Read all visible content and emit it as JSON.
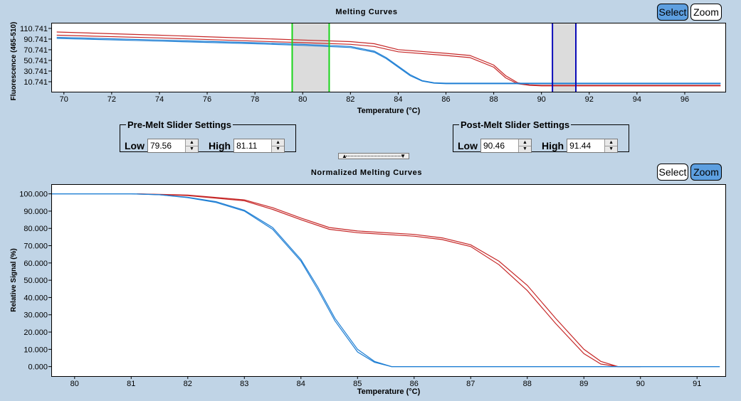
{
  "top_chart": {
    "title": "Melting Curves",
    "select_label": "Select",
    "zoom_label": "Zoom",
    "active_mode": "select"
  },
  "bottom_chart": {
    "title": "Normalized Melting Curves",
    "select_label": "Select",
    "zoom_label": "Zoom",
    "active_mode": "zoom"
  },
  "pre_melt": {
    "legend": "Pre-Melt Slider Settings",
    "low_label": "Low",
    "low_value": "79.56",
    "high_label": "High",
    "high_value": "81.11"
  },
  "post_melt": {
    "legend": "Post-Melt Slider Settings",
    "low_label": "Low",
    "low_value": "90.46",
    "high_label": "High",
    "high_value": "91.44"
  },
  "colors": {
    "background": "#c0d4e6",
    "red_series": "#c62828",
    "blue_series": "#1f7fd4",
    "pre_cursor": "#19d419",
    "post_cursor": "#0a0ab8",
    "slider_band": "#dcdcdc",
    "button_active": "#5d9fe0"
  },
  "chart_data": [
    {
      "type": "line",
      "title": "Melting Curves",
      "xlabel": "Temperature (°C)",
      "ylabel": "Fluorescence (465-510)",
      "xlim": [
        69.5,
        97.7
      ],
      "ylim": [
        -8,
        120
      ],
      "x_ticks": [
        "70",
        "72",
        "74",
        "76",
        "78",
        "80",
        "82",
        "84",
        "86",
        "88",
        "90",
        "92",
        "94",
        "96"
      ],
      "y_ticks": [
        "10.741",
        "30.741",
        "50.741",
        "70.741",
        "90.741",
        "110.741"
      ],
      "pre_melt_range": [
        79.56,
        81.11
      ],
      "post_melt_range": [
        90.46,
        91.44
      ],
      "series": [
        {
          "name": "red-1",
          "color": "#c62828",
          "x": [
            69.7,
            74,
            78,
            80,
            82,
            83,
            84,
            86,
            87,
            88,
            88.5,
            89,
            89.5,
            90,
            97.5
          ],
          "y": [
            104,
            98,
            92,
            89,
            86,
            82,
            71,
            64,
            60,
            42,
            22,
            9,
            5,
            4,
            4
          ]
        },
        {
          "name": "red-2",
          "color": "#c62828",
          "x": [
            69.7,
            74,
            78,
            80,
            82,
            83,
            84,
            86,
            87,
            88,
            88.5,
            89,
            89.5,
            90,
            97.5
          ],
          "y": [
            98,
            93,
            87,
            84,
            81,
            77,
            67,
            60,
            56,
            38,
            18,
            7,
            4,
            3,
            3
          ]
        },
        {
          "name": "blue-1",
          "color": "#1f7fd4",
          "x": [
            69.7,
            74,
            78,
            80,
            82,
            83,
            83.5,
            84,
            84.5,
            85,
            85.5,
            86,
            97.5
          ],
          "y": [
            94,
            89,
            84,
            81,
            77,
            68,
            56,
            40,
            24,
            13,
            9,
            8,
            8
          ]
        },
        {
          "name": "blue-2",
          "color": "#1f7fd4",
          "x": [
            69.7,
            74,
            78,
            80,
            82,
            83,
            83.5,
            84,
            84.5,
            85,
            85.5,
            86,
            97.5
          ],
          "y": [
            92,
            87,
            82,
            79,
            75,
            66,
            54,
            38,
            22,
            12,
            8,
            7,
            7
          ]
        }
      ]
    },
    {
      "type": "line",
      "title": "Normalized Melting Curves",
      "xlabel": "Temperature (°C)",
      "ylabel": "Relative Signal (%)",
      "xlim": [
        79.6,
        91.5
      ],
      "ylim": [
        -5.5,
        105.2
      ],
      "x_ticks": [
        "80",
        "81",
        "82",
        "83",
        "84",
        "85",
        "86",
        "87",
        "88",
        "89",
        "90",
        "91"
      ],
      "y_ticks": [
        "0.000",
        "10.000",
        "20.000",
        "30.000",
        "40.000",
        "50.000",
        "60.000",
        "70.000",
        "80.000",
        "90.000",
        "100.000"
      ],
      "series": [
        {
          "name": "red-1",
          "color": "#c62828",
          "x": [
            81.1,
            82,
            83,
            83.5,
            84,
            84.5,
            85,
            86,
            86.5,
            87,
            87.5,
            88,
            88.5,
            89,
            89.3,
            89.6,
            90
          ],
          "y": [
            100,
            99.3,
            96.5,
            92,
            86,
            80.5,
            78.5,
            76.5,
            74.5,
            70.5,
            61,
            47,
            28,
            10,
            3,
            0,
            0
          ]
        },
        {
          "name": "red-2",
          "color": "#c62828",
          "x": [
            81.1,
            82,
            83,
            83.5,
            84,
            84.5,
            85,
            86,
            86.5,
            87,
            87.5,
            88,
            88.5,
            89,
            89.3,
            89.6,
            90
          ],
          "y": [
            100,
            99,
            96,
            91,
            85,
            79.5,
            77.5,
            75.5,
            73.5,
            69.5,
            59,
            44,
            25,
            7.5,
            1.5,
            0,
            0
          ]
        },
        {
          "name": "blue-1",
          "color": "#1f7fd4",
          "x": [
            79.6,
            80.5,
            81,
            81.5,
            82,
            82.5,
            83,
            83.5,
            84,
            84.3,
            84.6,
            85,
            85.3,
            85.6,
            86,
            88,
            91.4
          ],
          "y": [
            100,
            100,
            100,
            99.5,
            98,
            95.5,
            90.5,
            80.5,
            62,
            46,
            28,
            10,
            3,
            0,
            0,
            0,
            0
          ]
        },
        {
          "name": "blue-2",
          "color": "#1f7fd4",
          "x": [
            79.6,
            80.5,
            81,
            81.5,
            82,
            82.5,
            83,
            83.5,
            84,
            84.3,
            84.6,
            85,
            85.3,
            85.6,
            86,
            88,
            91.4
          ],
          "y": [
            100,
            100,
            100,
            99.5,
            97.8,
            95,
            90,
            79.5,
            61,
            44.5,
            26.5,
            8.5,
            2.5,
            0,
            0,
            0,
            0
          ]
        }
      ]
    }
  ]
}
